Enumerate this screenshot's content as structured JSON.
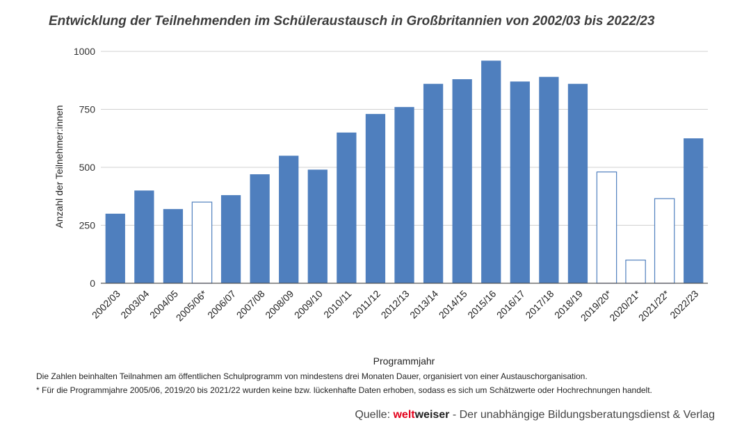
{
  "title": "Entwicklung der Teilnehmenden im Schüleraustausch in Großbritannien von 2002/03 bis 2022/23",
  "chart_data": {
    "type": "bar",
    "xlabel": "Programmjahr",
    "ylabel": "Anzahl der Teilnehmer:innen",
    "ylim": [
      0,
      1000
    ],
    "yticks": [
      0,
      250,
      500,
      750,
      1000
    ],
    "grid": true,
    "categories": [
      "2002/03",
      "2003/04",
      "2004/05",
      "2005/06*",
      "2006/07",
      "2007/08",
      "2008/09",
      "2009/10",
      "2010/11",
      "2011/12",
      "2012/13",
      "2013/14",
      "2014/15",
      "2015/16",
      "2016/17",
      "2017/18",
      "2018/19",
      "2019/20*",
      "2020/21*",
      "2021/22*",
      "2022/23"
    ],
    "values": [
      300,
      400,
      320,
      350,
      380,
      470,
      550,
      490,
      650,
      730,
      760,
      860,
      880,
      960,
      870,
      890,
      860,
      480,
      100,
      365,
      625
    ],
    "estimated": [
      false,
      false,
      false,
      true,
      false,
      false,
      false,
      false,
      false,
      false,
      false,
      false,
      false,
      false,
      false,
      false,
      false,
      true,
      true,
      true,
      false
    ],
    "colors": {
      "bar": "#4f7fbe",
      "estimated_fill": "#ffffff",
      "estimated_stroke": "#4f7fbe",
      "grid": "#d0d0d0",
      "axis": "#555555"
    }
  },
  "notes": {
    "line1": "Die Zahlen beinhalten Teilnahmen am öffentlichen Schulprogramm von mindestens drei Monaten Dauer, organisiert von einer Austauschorganisation.",
    "line2": "* Für die Programmjahre 2005/06, 2019/20 bis 2021/22 wurden keine bzw. lückenhafte Daten erhoben, sodass es sich um Schätzwerte oder Hochrechnungen handelt."
  },
  "source": {
    "prefix": "Quelle: ",
    "brand_red": "welt",
    "brand_bold": "weiser",
    "suffix": " - Der unabhängige Bildungsberatungsdienst & Verlag"
  }
}
